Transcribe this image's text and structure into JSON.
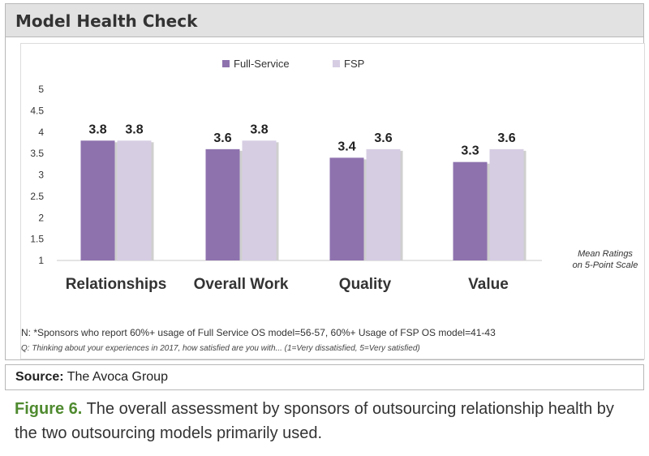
{
  "header": {
    "title": "Model Health Check"
  },
  "chart_data": {
    "type": "bar",
    "categories": [
      "Relationships",
      "Overall Work",
      "Quality",
      "Value"
    ],
    "series": [
      {
        "name": "Full-Service",
        "values": [
          3.8,
          3.6,
          3.4,
          3.3
        ],
        "color": "#8e72ae"
      },
      {
        "name": "FSP",
        "values": [
          3.8,
          3.8,
          3.6,
          3.6
        ],
        "color": "#d6cde3"
      }
    ],
    "value_labels": [
      [
        "3.8",
        "3.6",
        "3.4",
        "3.3"
      ],
      [
        "3.8",
        "3.8",
        "3.6",
        "3.6"
      ]
    ],
    "ylim": [
      1,
      5
    ],
    "yticks": [
      "1",
      "1.5",
      "2",
      "2.5",
      "3",
      "3.5",
      "4",
      "4.5",
      "5"
    ],
    "legend_position": "top-center",
    "grid": false,
    "annotation": [
      "Mean Ratings",
      "on 5-Point Scale"
    ]
  },
  "footnote": "N: *Sponsors who report 60%+ usage of Full Service OS model=56-57, 60%+ Usage of FSP OS model=41-43",
  "question": "Q: Thinking about your experiences in 2017, how satisfied are you with... (1=Very dissatisfied, 5=Very satisfied)",
  "source": {
    "label": "Source:",
    "text": "The Avoca Group"
  },
  "caption": {
    "figure_label": "Figure 6.",
    "text": "The overall assessment by sponsors of outsourcing relationship health by the two outsourcing models primarily used."
  }
}
